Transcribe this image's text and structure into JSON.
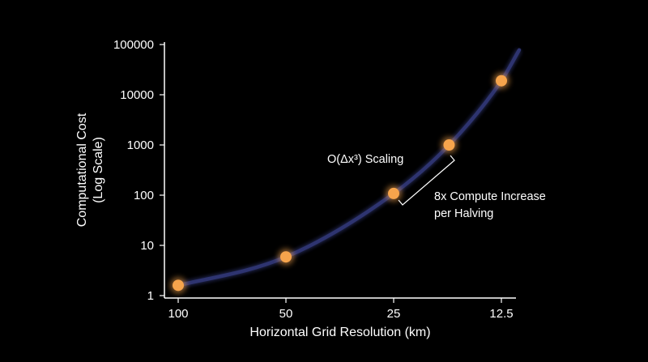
{
  "colors": {
    "background": "#000000",
    "curve": "#2e3470",
    "point_fill": "#f6a44c",
    "point_glow": "#f6a44c",
    "text": "#ffffff",
    "axis": "#ffffff"
  },
  "chart_data": {
    "type": "line",
    "title": "",
    "xlabel": "Horizontal Grid Resolution (km)",
    "ylabel": "Computational Cost (Log Scale)",
    "ylabel_lines": [
      "Computational Cost",
      "(Log Scale)"
    ],
    "x_scale": "reciprocal",
    "y_scale": "log",
    "xticks": [
      100,
      50,
      25,
      12.5
    ],
    "xtick_labels": [
      "100",
      "50",
      "25",
      "12.5"
    ],
    "yticks": [
      1,
      10,
      100,
      1000,
      10000,
      100000
    ],
    "ytick_labels": [
      "1",
      "10",
      "100",
      "1000",
      "10000",
      "100000"
    ],
    "ylim": [
      1,
      100000
    ],
    "grid": false,
    "legend": "none",
    "series": [
      {
        "x": [
          100,
          50,
          25,
          17.5,
          12.5
        ],
        "y": [
          1.6,
          5.9,
          108,
          1000,
          19000
        ],
        "markers": true
      }
    ],
    "annotations": [
      {
        "text": "O(Δx³) Scaling"
      },
      {
        "lines": [
          "8x Compute Increase",
          "per Halving"
        ]
      }
    ]
  }
}
